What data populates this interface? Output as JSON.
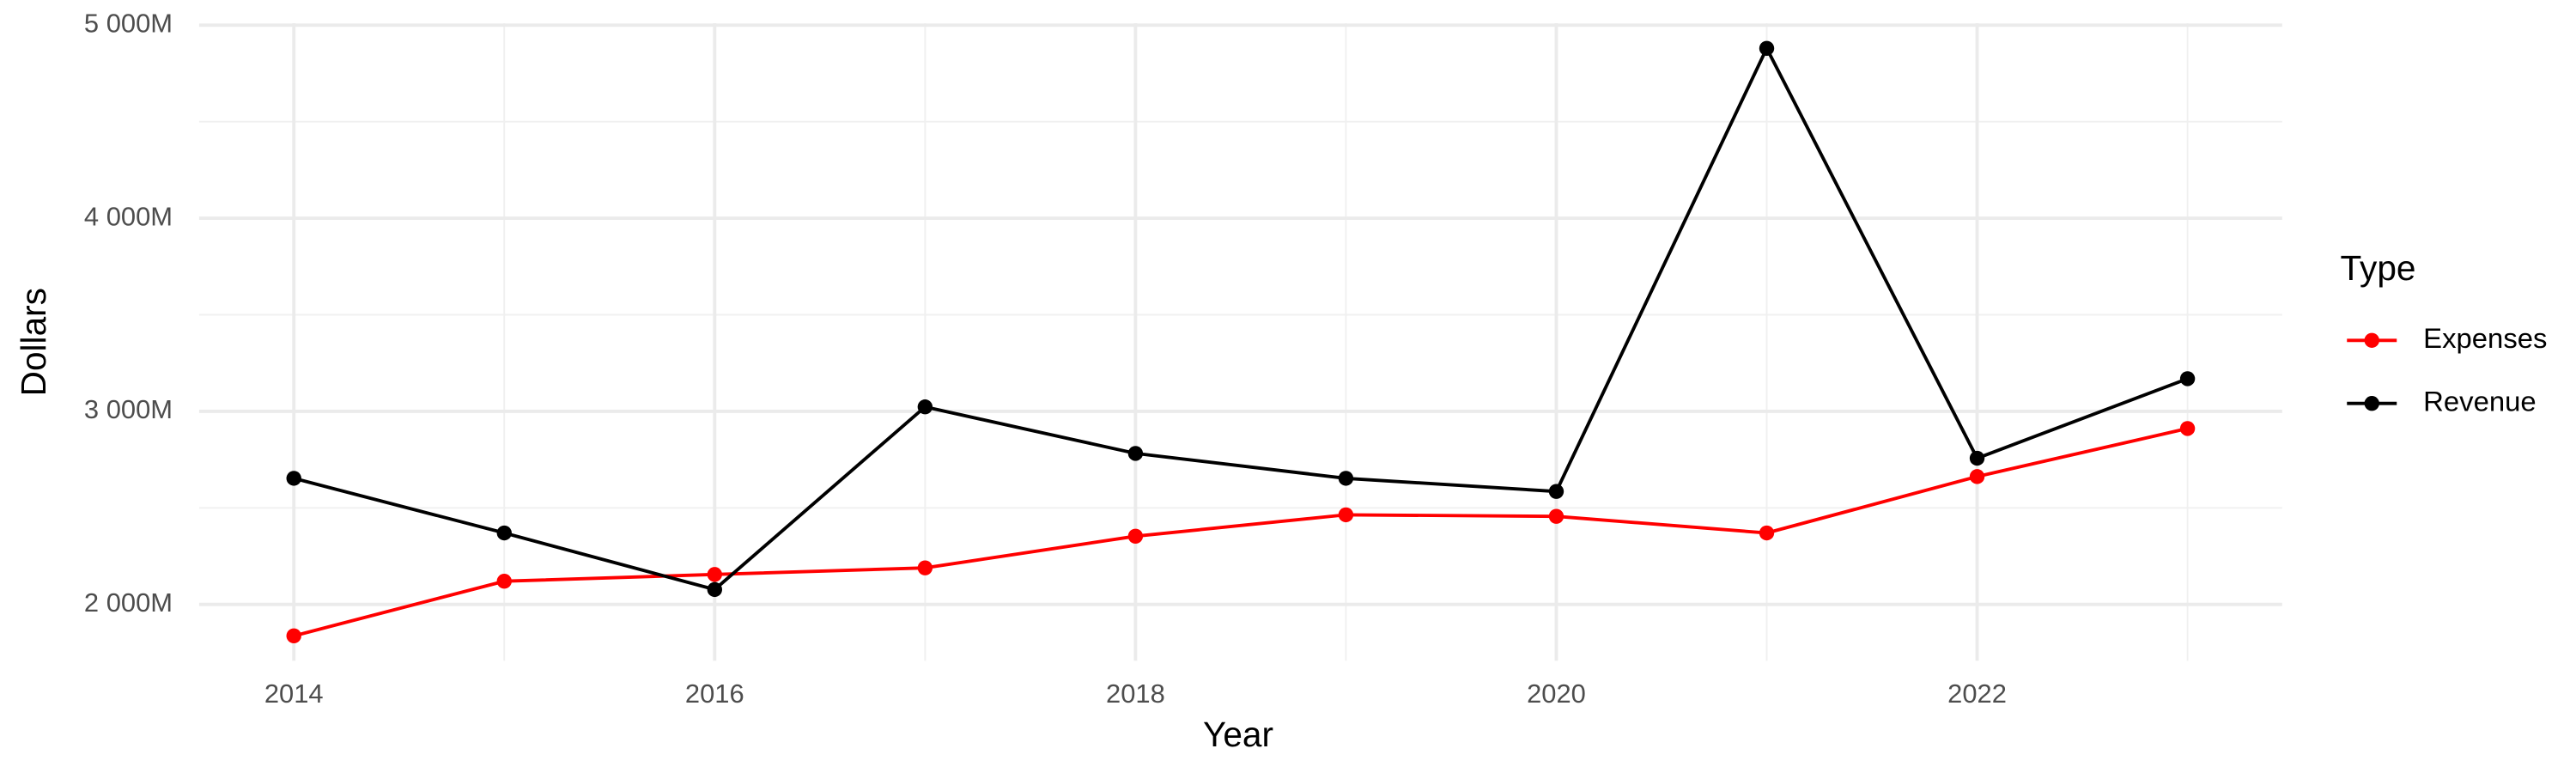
{
  "chart_data": {
    "type": "line",
    "x_label": "Year",
    "y_label": "Dollars",
    "legend_title": "Type",
    "x": [
      2014,
      2015,
      2016,
      2017,
      2018,
      2019,
      2020,
      2021,
      2022,
      2023
    ],
    "series": [
      {
        "name": "Expenses",
        "color": "#ff0000",
        "values": [
          1837,
          2120,
          2155,
          2189,
          2353,
          2464,
          2456,
          2370,
          2662,
          2911
        ]
      },
      {
        "name": "Revenue",
        "color": "#000000",
        "values": [
          2653,
          2370,
          2077,
          3023,
          2782,
          2653,
          2585,
          4880,
          2757,
          3169
        ]
      }
    ],
    "xlim": [
      2013.55,
      2023.45
    ],
    "xticks": [
      2014,
      2016,
      2018,
      2020,
      2022
    ],
    "ylim": [
      1708,
      5010
    ],
    "yticks": [
      {
        "value": 2000,
        "label": "2 000M"
      },
      {
        "value": 3000,
        "label": "3 000M"
      },
      {
        "value": 4000,
        "label": "4 000M"
      },
      {
        "value": 5000,
        "label": "5 000M"
      }
    ],
    "grid": true,
    "legend": "right"
  }
}
